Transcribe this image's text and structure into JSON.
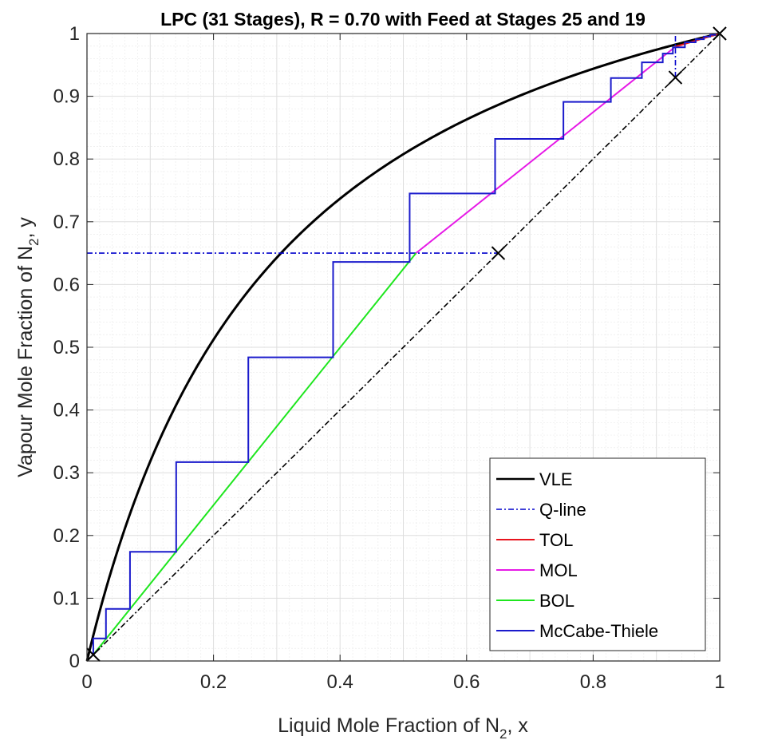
{
  "chart_data": {
    "type": "line",
    "title": "LPC (31 Stages), R = 0.70 with Feed at Stages 25 and 19",
    "xlabel": {
      "prefix": "Liquid Mole Fraction of N",
      "sub": "2",
      "suffix": ", x"
    },
    "ylabel": {
      "prefix": "Vapour Mole Fraction of N",
      "sub": "2",
      "suffix": ", y"
    },
    "xlim": [
      0,
      1
    ],
    "ylim": [
      0,
      1
    ],
    "xticks": [
      0,
      0.2,
      0.4,
      0.6,
      0.8,
      1
    ],
    "xtick_labels": [
      "0",
      "0.2",
      "0.4",
      "0.6",
      "0.8",
      "1"
    ],
    "yticks": [
      0,
      0.1,
      0.2,
      0.3,
      0.4,
      0.5,
      0.6,
      0.7,
      0.8,
      0.9,
      1
    ],
    "ytick_labels": [
      "0",
      "0.1",
      "0.2",
      "0.3",
      "0.4",
      "0.5",
      "0.6",
      "0.7",
      "0.8",
      "0.9",
      "1"
    ],
    "grid": true,
    "minor_grid": true,
    "legend_position": "bottom-right",
    "relative_volatility": 4.2,
    "series": [
      {
        "name": "VLE",
        "color": "#000000",
        "style": "solid",
        "width": 3,
        "kind": "equilibrium"
      },
      {
        "name": "Q-line",
        "color": "#0000cc",
        "style": "dashdot",
        "width": 1.6,
        "points": [
          [
            0,
            0.65
          ],
          [
            0.65,
            0.65
          ]
        ],
        "extra_points": [
          [
            0.93,
            0.93
          ],
          [
            0.93,
            1
          ]
        ]
      },
      {
        "name": "TOL",
        "color": "#e8141e",
        "style": "solid",
        "width": 2,
        "points": [
          [
            0.93,
            0.979
          ],
          [
            1,
            1
          ]
        ]
      },
      {
        "name": "MOL",
        "color": "#e619e6",
        "style": "solid",
        "width": 2,
        "points": [
          [
            0.52,
            0.65
          ],
          [
            0.93,
            0.979
          ]
        ]
      },
      {
        "name": "BOL",
        "color": "#1ee61e",
        "style": "solid",
        "width": 2,
        "points": [
          [
            0.01,
            0.01
          ],
          [
            0.52,
            0.65
          ]
        ]
      },
      {
        "name": "McCabe-Thiele",
        "color": "#1a1acc",
        "style": "solid",
        "width": 2,
        "points": [
          [
            0.01,
            0.01
          ],
          [
            0.01,
            0.01
          ],
          [
            0.01,
            0.036
          ],
          [
            0.03,
            0.036
          ],
          [
            0.03,
            0.083
          ],
          [
            0.068,
            0.083
          ],
          [
            0.068,
            0.174
          ],
          [
            0.141,
            0.174
          ],
          [
            0.141,
            0.317
          ],
          [
            0.255,
            0.317
          ],
          [
            0.255,
            0.484
          ],
          [
            0.389,
            0.484
          ],
          [
            0.389,
            0.636
          ],
          [
            0.51,
            0.636
          ],
          [
            0.51,
            0.745
          ],
          [
            0.645,
            0.745
          ],
          [
            0.645,
            0.832
          ],
          [
            0.753,
            0.832
          ],
          [
            0.753,
            0.891
          ],
          [
            0.828,
            0.891
          ],
          [
            0.828,
            0.929
          ],
          [
            0.877,
            0.929
          ],
          [
            0.877,
            0.954
          ],
          [
            0.91,
            0.954
          ],
          [
            0.91,
            0.968
          ],
          [
            0.926,
            0.968
          ],
          [
            0.926,
            0.978
          ],
          [
            0.945,
            0.978
          ],
          [
            0.945,
            0.986
          ],
          [
            0.962,
            0.986
          ],
          [
            0.962,
            0.991
          ],
          [
            0.975,
            0.991
          ],
          [
            0.975,
            0.995
          ],
          [
            0.985,
            0.995
          ],
          [
            0.985,
            0.998
          ],
          [
            0.993,
            0.998
          ],
          [
            0.993,
            1
          ]
        ]
      },
      {
        "name": "",
        "color": "#000000",
        "style": "dashdot",
        "width": 1.6,
        "kind": "diagonal",
        "points": [
          [
            0,
            0
          ],
          [
            1,
            1
          ]
        ]
      }
    ],
    "markers": [
      [
        0.01,
        0.01
      ],
      [
        0.65,
        0.65
      ],
      [
        0.93,
        0.93
      ],
      [
        1,
        1
      ]
    ]
  }
}
